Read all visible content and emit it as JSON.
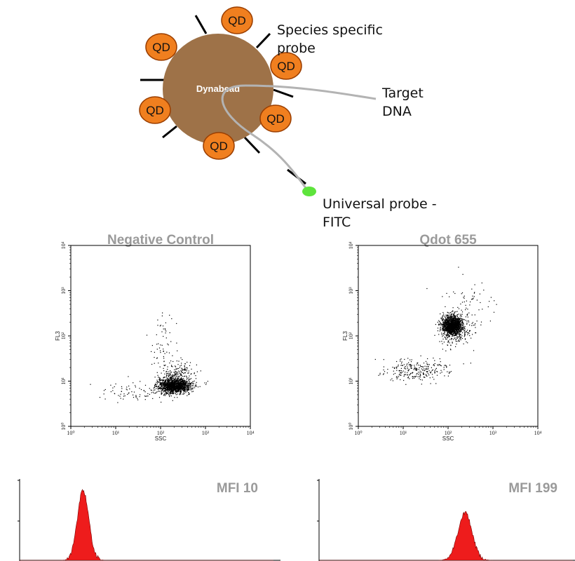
{
  "diagram": {
    "bead_label": "Dynabead",
    "qd_label": "QD",
    "species_probe_label": [
      "Species specific",
      "probe"
    ],
    "target_label": [
      "Target",
      "DNA"
    ],
    "universal_label": [
      "Universal probe -",
      "FITC"
    ],
    "colors": {
      "bead": "#9e7248",
      "qd_fill": "#f07f1f",
      "qd_stroke": "#9b3e00",
      "fitc": "#5ee43c",
      "dna": "#b3b3b3"
    }
  },
  "chart_data": [
    {
      "type": "scatter",
      "title": "Negative Control",
      "xlabel": "SSC",
      "ylabel": "FL3",
      "xscale": "log",
      "yscale": "log",
      "xlim": [
        1,
        10000
      ],
      "ylim": [
        1,
        10000
      ],
      "x_ticks": [
        "10⁰",
        "10¹",
        "10²",
        "10³",
        "10⁴"
      ],
      "y_ticks": [
        "10⁰",
        "10¹",
        "10²",
        "10³",
        "10⁴"
      ],
      "clusters": [
        {
          "name": "",
          "center": [
            200,
            8
          ],
          "spread": [
            0.18,
            0.08
          ],
          "count": 1400
        },
        {
          "name": "",
          "center": [
            250,
            14
          ],
          "spread": [
            0.22,
            0.14
          ],
          "count": 220
        },
        {
          "name": "",
          "center": [
            120,
            60
          ],
          "spread": [
            0.15,
            0.35
          ],
          "count": 60
        },
        {
          "name": "",
          "center": [
            30,
            6
          ],
          "spread": [
            0.45,
            0.1
          ],
          "count": 90
        }
      ]
    },
    {
      "type": "scatter",
      "title": "Qdot 655",
      "xlabel": "SSC",
      "ylabel": "FL3",
      "xscale": "log",
      "yscale": "log",
      "xlim": [
        1,
        10000
      ],
      "ylim": [
        1,
        10000
      ],
      "x_ticks": [
        "10⁰",
        "10¹",
        "10²",
        "10³",
        "10⁴"
      ],
      "y_ticks": [
        "10⁰",
        "10¹",
        "10²",
        "10³",
        "10⁴"
      ],
      "clusters": [
        {
          "name": "",
          "center": [
            120,
            170
          ],
          "spread": [
            0.1,
            0.1
          ],
          "count": 1400
        },
        {
          "name": "",
          "center": [
            140,
            150
          ],
          "spread": [
            0.2,
            0.2
          ],
          "count": 300
        },
        {
          "name": "",
          "center": [
            20,
            18
          ],
          "spread": [
            0.35,
            0.12
          ],
          "count": 260
        },
        {
          "name": "",
          "center": [
            300,
            500
          ],
          "spread": [
            0.3,
            0.3
          ],
          "count": 60
        }
      ]
    },
    {
      "type": "area",
      "title": "MFI 10",
      "xscale": "log",
      "xlim": [
        1,
        10000
      ],
      "peak_x": 10,
      "peak_width": 0.09,
      "fill": "#ee1c1c"
    },
    {
      "type": "area",
      "title": "MFI 199",
      "xscale": "log",
      "xlim": [
        1,
        10000
      ],
      "peak_x": 199,
      "peak_width": 0.11,
      "fill": "#ee1c1c"
    }
  ]
}
